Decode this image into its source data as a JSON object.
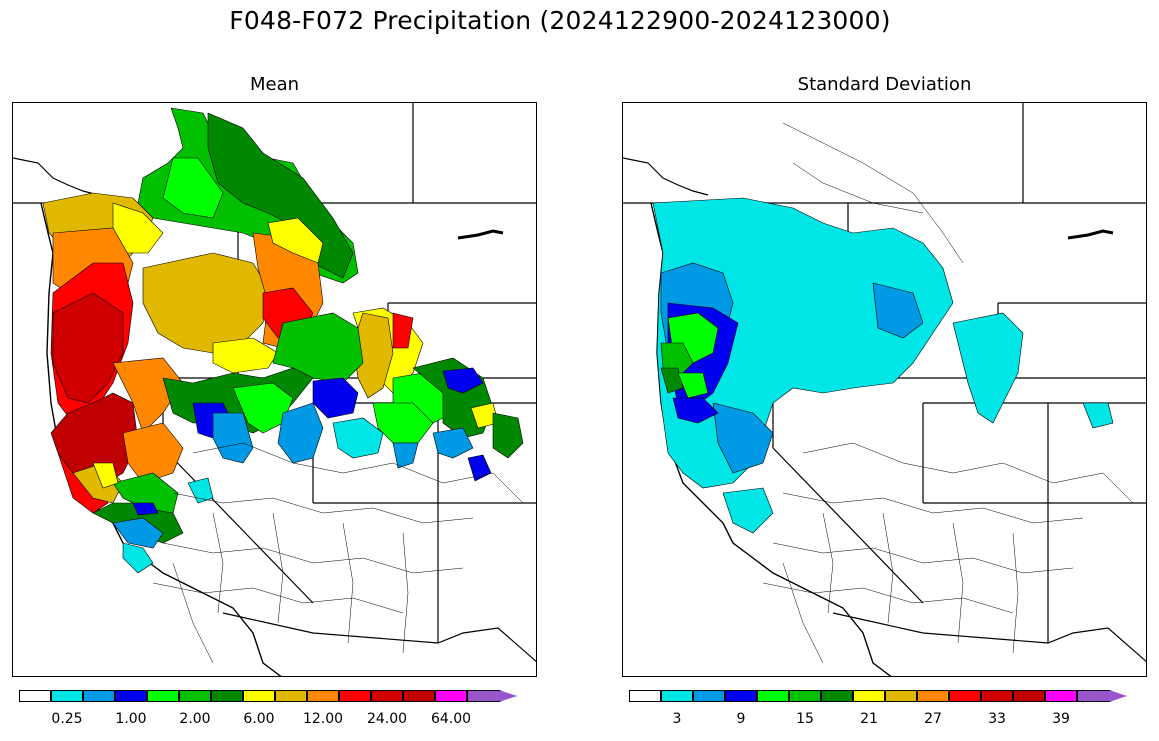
{
  "title": "F048-F072 Precipitation (2024122900-2024123000)",
  "panels": [
    {
      "id": "mean",
      "title": "Mean",
      "colorbar": {
        "colors": [
          "#ffffff",
          "#00e5e5",
          "#0099e6",
          "#0000f0",
          "#00ff00",
          "#00c000",
          "#008800",
          "#ffff00",
          "#e0b800",
          "#ff8800",
          "#ff0000",
          "#d00000",
          "#c00000",
          "#ff00ff",
          "#9955cc"
        ],
        "tick_labels": [
          "0.25",
          "1.00",
          "2.00",
          "6.00",
          "12.00",
          "24.00",
          "64.00"
        ]
      }
    },
    {
      "id": "stddev",
      "title": "Standard Deviation",
      "colorbar": {
        "colors": [
          "#ffffff",
          "#00e5e5",
          "#0099e6",
          "#0000f0",
          "#00ff00",
          "#00c000",
          "#008800",
          "#ffff00",
          "#e0b800",
          "#ff8800",
          "#ff0000",
          "#d00000",
          "#c00000",
          "#ff00ff",
          "#9955cc"
        ],
        "tick_labels": [
          "3",
          "9",
          "15",
          "21",
          "27",
          "33",
          "39"
        ]
      }
    }
  ]
}
